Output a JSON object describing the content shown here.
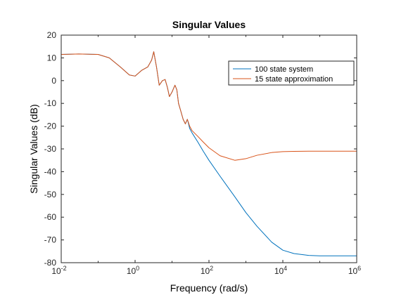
{
  "chart_data": {
    "type": "line",
    "title": "Singular Values",
    "xlabel": "Frequency (rad/s)",
    "ylabel": "Singular Values (dB)",
    "xscale": "log",
    "xlim": [
      0.01,
      1000000
    ],
    "ylim": [
      -80,
      20
    ],
    "x_ticks": [
      {
        "base": "10",
        "exp": "-2"
      },
      {
        "base": "10",
        "exp": "0"
      },
      {
        "base": "10",
        "exp": "2"
      },
      {
        "base": "10",
        "exp": "4"
      },
      {
        "base": "10",
        "exp": "6"
      }
    ],
    "y_ticks": [
      "20",
      "10",
      "0",
      "-10",
      "-20",
      "-30",
      "-40",
      "-50",
      "-60",
      "-70",
      "-80"
    ],
    "grid": false,
    "legend_position": "top-right",
    "series": [
      {
        "name": "100 state system",
        "color": "#0072BD",
        "x": [
          0.01,
          0.03,
          0.1,
          0.2,
          0.4,
          0.7,
          1.0,
          1.5,
          2.2,
          2.8,
          3.2,
          3.8,
          4.5,
          5.5,
          6.5,
          7.5,
          8.5,
          10,
          12,
          13.5,
          15,
          17,
          20,
          23,
          26,
          28,
          30,
          35,
          50,
          70,
          100,
          200,
          500,
          1000,
          2000,
          5000,
          10000,
          20000,
          50000,
          100000,
          1000000
        ],
        "y": [
          11.5,
          11.7,
          11.5,
          10,
          6,
          2.5,
          2,
          4.5,
          6,
          9,
          12.7,
          6,
          -2,
          0,
          0.5,
          -3,
          -7,
          -5,
          -2,
          -4,
          -10,
          -13,
          -17,
          -19,
          -17,
          -19,
          -21,
          -23,
          -27,
          -31,
          -35,
          -42,
          -51,
          -58,
          -64,
          -71,
          -74.5,
          -76,
          -76.8,
          -77,
          -77
        ]
      },
      {
        "name": "15 state approximation",
        "color": "#D95319",
        "x": [
          0.01,
          0.03,
          0.1,
          0.2,
          0.4,
          0.7,
          1.0,
          1.5,
          2.2,
          2.8,
          3.2,
          3.8,
          4.5,
          5.5,
          6.5,
          7.5,
          8.5,
          10,
          12,
          13.5,
          15,
          17,
          20,
          23,
          26,
          28,
          30,
          35,
          50,
          70,
          100,
          200,
          500,
          1000,
          2000,
          5000,
          10000,
          20000,
          50000,
          100000,
          1000000
        ],
        "y": [
          11.5,
          11.7,
          11.5,
          10,
          6,
          2.5,
          2,
          4.5,
          6,
          9,
          12.7,
          6,
          -2,
          0,
          0.5,
          -3,
          -7,
          -5,
          -2,
          -4,
          -10,
          -13,
          -17,
          -19,
          -17,
          -18.5,
          -20,
          -22,
          -24.5,
          -27,
          -29.5,
          -33,
          -35,
          -34.3,
          -32.8,
          -31.6,
          -31.2,
          -31.1,
          -31,
          -31,
          -31
        ]
      }
    ]
  }
}
